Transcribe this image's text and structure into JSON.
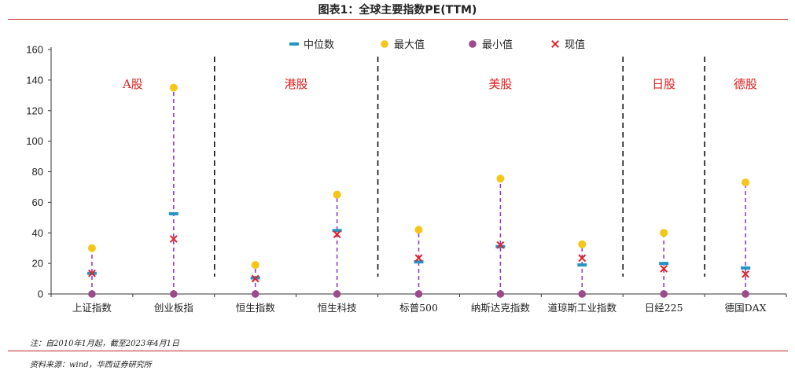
{
  "title": "图表1：全球主要指数PE(TTM)",
  "note": "注：自2010年1月起，截至2023年4月1日",
  "source": "资料来源：wind，华西证券研究所",
  "chart_data": {
    "type": "scatter",
    "categories": [
      "上证指数",
      "创业板指",
      "恒生指数",
      "恒生科技",
      "标普500",
      "纳斯达克指数",
      "道琼斯工业指数",
      "日经225",
      "德国DAX"
    ],
    "ylim": [
      0,
      160
    ],
    "yticks": [
      0,
      20,
      40,
      60,
      80,
      100,
      120,
      140,
      160
    ],
    "grid": false,
    "legend_position": "top-center",
    "series": [
      {
        "name": "中位数",
        "marker": "dash",
        "color": "#2196c6",
        "values": [
          13.5,
          52.5,
          10.5,
          41.5,
          21,
          31,
          19,
          20,
          17
        ]
      },
      {
        "name": "最大值",
        "marker": "circle",
        "color": "#f5c518",
        "values": [
          30,
          135,
          19,
          65,
          42,
          75.5,
          32.5,
          40,
          73
        ]
      },
      {
        "name": "最小值",
        "marker": "circle",
        "color": "#9b4a8c",
        "values": [
          0,
          0,
          0,
          0,
          0,
          0,
          0,
          0,
          0
        ]
      },
      {
        "name": "现值",
        "marker": "x",
        "color": "#e31f26",
        "values": [
          13.5,
          36,
          10,
          39,
          23.5,
          32,
          23.5,
          16.5,
          13
        ]
      }
    ],
    "groups": [
      {
        "label": "A股",
        "start": 0,
        "end": 1
      },
      {
        "label": "港股",
        "start": 2,
        "end": 3
      },
      {
        "label": "美股",
        "start": 4,
        "end": 6
      },
      {
        "label": "日股",
        "start": 7,
        "end": 7
      },
      {
        "label": "德股",
        "start": 8,
        "end": 8
      }
    ],
    "stem_color": "#8b3fd0",
    "separator_color": "#111111"
  }
}
